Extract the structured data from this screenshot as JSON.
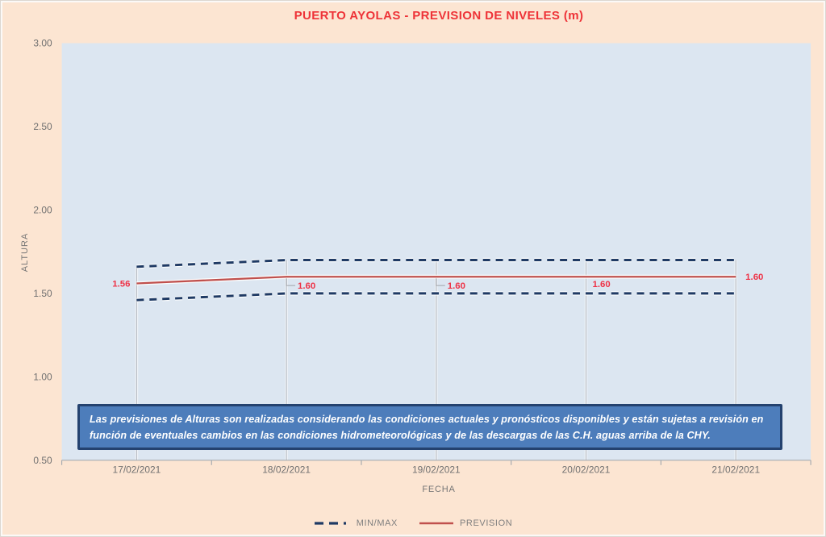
{
  "chart_data": {
    "type": "line",
    "title": "PUERTO AYOLAS - PREVISION DE NIVELES (m)",
    "categories": [
      "17/02/2021",
      "18/02/2021",
      "19/02/2021",
      "20/02/2021",
      "21/02/2021"
    ],
    "series": [
      {
        "name": "PREVISION",
        "values": [
          1.56,
          1.6,
          1.6,
          1.6,
          1.6
        ],
        "line_style": "solid",
        "color": "#c0504d",
        "data_labels": [
          "1.56",
          "1.60",
          "1.60",
          "1.60",
          "1.60"
        ]
      },
      {
        "name": "MAX",
        "values": [
          1.66,
          1.7,
          1.7,
          1.7,
          1.7
        ],
        "line_style": "dashed",
        "color": "#1f3a64"
      },
      {
        "name": "MIN",
        "values": [
          1.46,
          1.5,
          1.5,
          1.5,
          1.5
        ],
        "line_style": "dashed",
        "color": "#1f3a64"
      }
    ],
    "xlabel": "FECHA",
    "ylabel": "ALTURA",
    "ylim": [
      0.5,
      3.0
    ],
    "ytick_step": 0.5,
    "ytick_labels": [
      "3.00",
      "2.50",
      "2.00",
      "1.50",
      "1.00",
      "0.50"
    ],
    "grid": "vertical drop lines at each category, no horizontal gridlines",
    "legend_position": "bottom",
    "legend": [
      {
        "label": "MIN/MAX",
        "style": "dashed",
        "color": "#1f3a64"
      },
      {
        "label": "PREVISION",
        "style": "solid",
        "color": "#c0504d"
      }
    ],
    "annotation_box": {
      "text": "Las previsiones de Alturas son realizadas considerando las condiciones actuales y pronósticos disponibles y están sujetas a revisión en función de eventuales cambios en las condiciones hidrometeorológicas y de las descargas de las C.H. aguas arriba de la CHY.",
      "fill": "#4d7dbb",
      "border_color": "#24426f",
      "text_color": "#ffffff"
    },
    "colors": {
      "background": "#fce5d2",
      "plot_background": "#dce6f1",
      "title": "#ee3338",
      "data_label": "#ee3347",
      "axis_text": "#707070",
      "axis_line": "#a7abb0",
      "drop_line": "#b8bdc4"
    }
  }
}
